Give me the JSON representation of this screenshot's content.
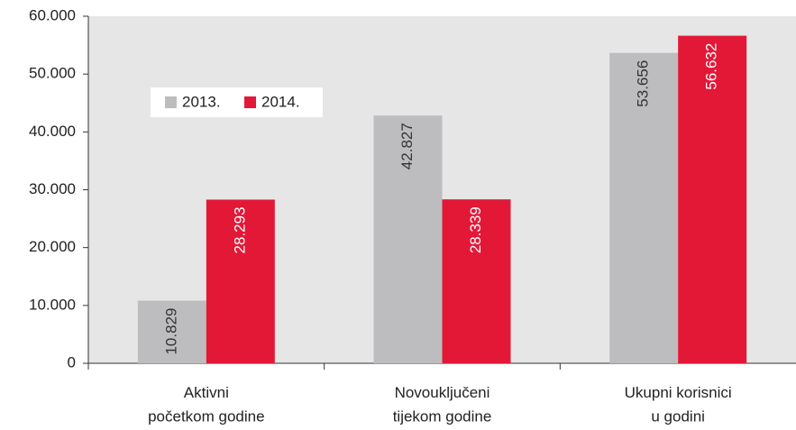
{
  "chart_data": {
    "type": "bar",
    "categories": [
      "Aktivni\npočetkom godine",
      "Novouključeni\ntijekom godine",
      "Ukupni korisnici\nu godini"
    ],
    "series": [
      {
        "name": "2013.",
        "color": "#bdbdbf",
        "label_color": "#333333",
        "values": [
          10829,
          42827,
          53656
        ],
        "value_labels": [
          "10.829",
          "42.827",
          "53.656"
        ]
      },
      {
        "name": "2014.",
        "color": "#e31837",
        "label_color": "#ffffff",
        "values": [
          28293,
          28339,
          56632
        ],
        "value_labels": [
          "28.293",
          "28.339",
          "56.632"
        ]
      }
    ],
    "ylim": [
      0,
      60000
    ],
    "yticks": [
      0,
      {
        "value": 10000,
        "label": "10.000"
      },
      {
        "value": 20000,
        "label": "20.000"
      },
      {
        "value": 30000,
        "label": "30.000"
      },
      {
        "value": 40000,
        "label": "40.000"
      },
      {
        "value": 50000,
        "label": "50.000"
      },
      {
        "value": 60000,
        "label": "60.000"
      }
    ],
    "background": "#e6e6e6",
    "legend": "upper left"
  }
}
